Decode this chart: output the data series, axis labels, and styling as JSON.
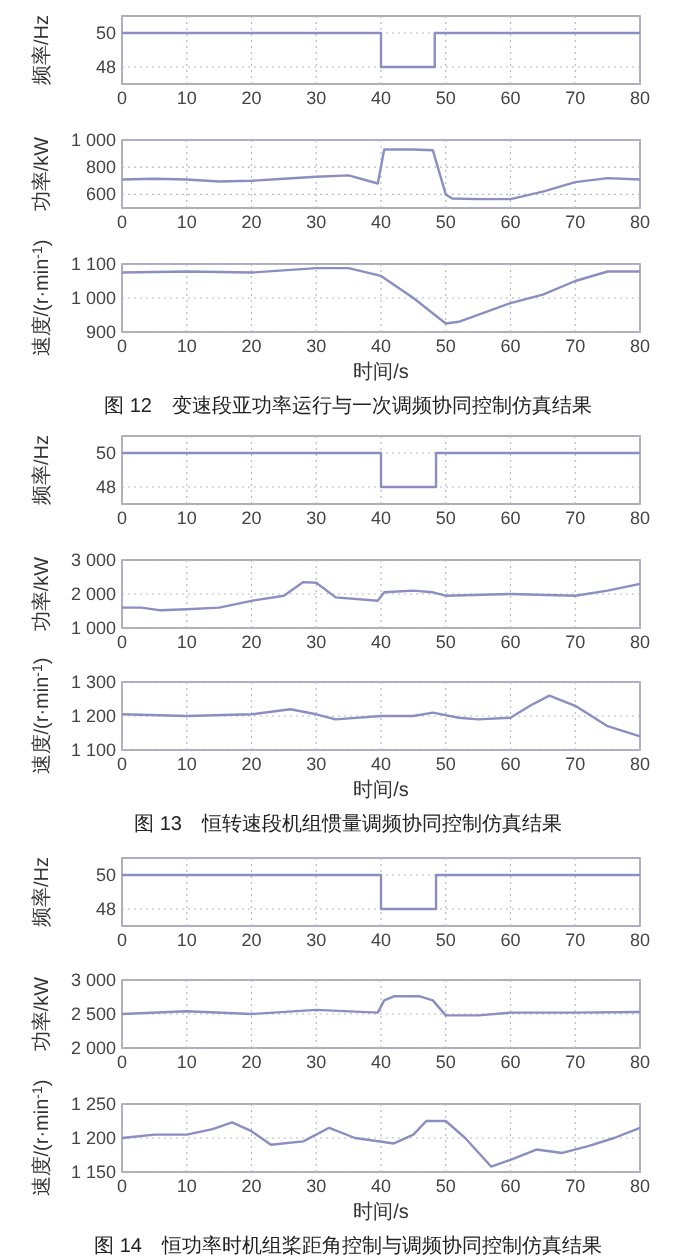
{
  "chart_data": [
    {
      "type": "line",
      "ylabel": "频率/Hz",
      "x": [
        0,
        40,
        40,
        48.3,
        48.3,
        80
      ],
      "values": [
        50,
        50,
        48,
        48,
        50,
        50
      ],
      "color": "#8a8fbf",
      "xlim": [
        0,
        80
      ],
      "xticks": [
        0,
        10,
        20,
        30,
        40,
        50,
        60,
        70,
        80
      ],
      "ylim": [
        47,
        51
      ],
      "yticks": [
        48,
        50
      ],
      "grid": true
    },
    {
      "type": "line",
      "ylabel": "功率/kW",
      "x": [
        0,
        5,
        10,
        15,
        20,
        25,
        30,
        35,
        39.5,
        40.5,
        45,
        48,
        50,
        51,
        55,
        60,
        65,
        70,
        75,
        80
      ],
      "values": [
        710,
        715,
        710,
        695,
        700,
        715,
        730,
        740,
        680,
        930,
        930,
        925,
        600,
        570,
        565,
        565,
        620,
        690,
        720,
        710
      ],
      "color": "#8a8fbf",
      "xlim": [
        0,
        80
      ],
      "xticks": [
        0,
        10,
        20,
        30,
        40,
        50,
        60,
        70,
        80
      ],
      "ylim": [
        500,
        1000
      ],
      "yticks": [
        600,
        800,
        {
          "value": 1000,
          "label": "1 000"
        }
      ],
      "grid": true
    },
    {
      "type": "line",
      "ylabel": "速度/(r·min$^{-1}$)",
      "xlabel": "时间/s",
      "annotations": [
        "图 12　变速段亚功率运行与一次调频协同控制仿真结果"
      ],
      "x": [
        0,
        10,
        20,
        30,
        35,
        40,
        45,
        50,
        52,
        60,
        65,
        70,
        75,
        80
      ],
      "values": [
        1075,
        1078,
        1075,
        1088,
        1088,
        1065,
        1000,
        925,
        930,
        985,
        1010,
        1050,
        1078,
        1078
      ],
      "color": "#8a8fbf",
      "xlim": [
        0,
        80
      ],
      "xticks": [
        0,
        10,
        20,
        30,
        40,
        50,
        60,
        70,
        80
      ],
      "ylim": [
        900,
        1100
      ],
      "yticks": [
        900,
        {
          "value": 1000,
          "label": "1 000"
        },
        {
          "value": 1100,
          "label": "1 100"
        }
      ],
      "grid": true
    },
    {
      "type": "line",
      "ylabel": "频率/Hz",
      "x": [
        0,
        40,
        40,
        48.5,
        48.5,
        80
      ],
      "values": [
        50,
        50,
        48,
        48,
        50,
        50
      ],
      "color": "#8a8fbf",
      "xlim": [
        0,
        80
      ],
      "xticks": [
        0,
        10,
        20,
        30,
        40,
        50,
        60,
        70,
        80
      ],
      "ylim": [
        47,
        51
      ],
      "yticks": [
        48,
        50
      ],
      "grid": true
    },
    {
      "type": "line",
      "ylabel": "功率/kW",
      "x": [
        0,
        3,
        6,
        10,
        15,
        20,
        25,
        28,
        30,
        33,
        39.5,
        40.5,
        45,
        48,
        50,
        60,
        70,
        75,
        80
      ],
      "values": [
        1600,
        1600,
        1520,
        1550,
        1600,
        1800,
        1950,
        2350,
        2330,
        1900,
        1800,
        2050,
        2100,
        2050,
        1950,
        2000,
        1950,
        2100,
        2300
      ],
      "color": "#8a8fbf",
      "xlim": [
        0,
        80
      ],
      "xticks": [
        0,
        10,
        20,
        30,
        40,
        50,
        60,
        70,
        80
      ],
      "ylim": [
        1000,
        3000
      ],
      "yticks": [
        {
          "value": 1000,
          "label": "1 000"
        },
        {
          "value": 2000,
          "label": "2 000"
        },
        {
          "value": 3000,
          "label": "3 000"
        }
      ],
      "grid": true
    },
    {
      "type": "line",
      "ylabel": "速度/(r·min$^{-1}$)",
      "xlabel": "时间/s",
      "annotations": [
        "图 13　恒转速段机组惯量调频协同控制仿真结果"
      ],
      "x": [
        0,
        10,
        20,
        26,
        30,
        33,
        40,
        45,
        48,
        52,
        55,
        60,
        63,
        66,
        70,
        75,
        80
      ],
      "values": [
        1205,
        1200,
        1205,
        1220,
        1205,
        1190,
        1200,
        1200,
        1210,
        1195,
        1190,
        1195,
        1230,
        1260,
        1230,
        1170,
        1140
      ],
      "color": "#8a8fbf",
      "xlim": [
        0,
        80
      ],
      "xticks": [
        0,
        10,
        20,
        30,
        40,
        50,
        60,
        70,
        80
      ],
      "ylim": [
        1100,
        1300
      ],
      "yticks": [
        {
          "value": 1100,
          "label": "1 100"
        },
        {
          "value": 1200,
          "label": "1 200"
        },
        {
          "value": 1300,
          "label": "1 300"
        }
      ],
      "grid": true
    },
    {
      "type": "line",
      "ylabel": "频率/Hz",
      "x": [
        0,
        40,
        40,
        48.5,
        48.5,
        80
      ],
      "values": [
        50,
        50,
        48,
        48,
        50,
        50
      ],
      "color": "#8a8fbf",
      "xlim": [
        0,
        80
      ],
      "xticks": [
        0,
        10,
        20,
        30,
        40,
        50,
        60,
        70,
        80
      ],
      "ylim": [
        47,
        51
      ],
      "yticks": [
        48,
        50
      ],
      "grid": true
    },
    {
      "type": "line",
      "ylabel": "功率/kW",
      "x": [
        0,
        10,
        20,
        30,
        39.5,
        40.5,
        42,
        46,
        48,
        50,
        55,
        60,
        70,
        80
      ],
      "values": [
        2500,
        2540,
        2500,
        2560,
        2520,
        2700,
        2760,
        2760,
        2700,
        2480,
        2480,
        2520,
        2520,
        2530
      ],
      "color": "#8a8fbf",
      "xlim": [
        0,
        80
      ],
      "xticks": [
        0,
        10,
        20,
        30,
        40,
        50,
        60,
        70,
        80
      ],
      "ylim": [
        2000,
        3000
      ],
      "yticks": [
        {
          "value": 2000,
          "label": "2 000"
        },
        {
          "value": 2500,
          "label": "2 500"
        },
        {
          "value": 3000,
          "label": "3 000"
        }
      ],
      "grid": true
    },
    {
      "type": "line",
      "ylabel": "速度/(r·min$^{-1}$)",
      "xlabel": "时间/s",
      "annotations": [
        "图 14　恒功率时机组桨距角控制与调频协同控制仿真结果"
      ],
      "x": [
        0,
        5,
        10,
        14,
        17,
        20,
        23,
        28,
        32,
        36,
        42,
        45,
        47,
        50,
        53,
        57,
        60,
        64,
        68,
        72,
        76,
        80
      ],
      "values": [
        1200,
        1205,
        1205,
        1213,
        1223,
        1210,
        1190,
        1195,
        1215,
        1200,
        1192,
        1205,
        1225,
        1225,
        1200,
        1158,
        1168,
        1183,
        1178,
        1188,
        1200,
        1215
      ],
      "color": "#8a8fbf",
      "xlim": [
        0,
        80
      ],
      "xticks": [
        0,
        10,
        20,
        30,
        40,
        50,
        60,
        70,
        80
      ],
      "ylim": [
        1150,
        1250
      ],
      "yticks": [
        {
          "value": 1150,
          "label": "1 150"
        },
        {
          "value": 1200,
          "label": "1 200"
        },
        {
          "value": 1250,
          "label": "1 250"
        }
      ],
      "grid": true
    }
  ]
}
